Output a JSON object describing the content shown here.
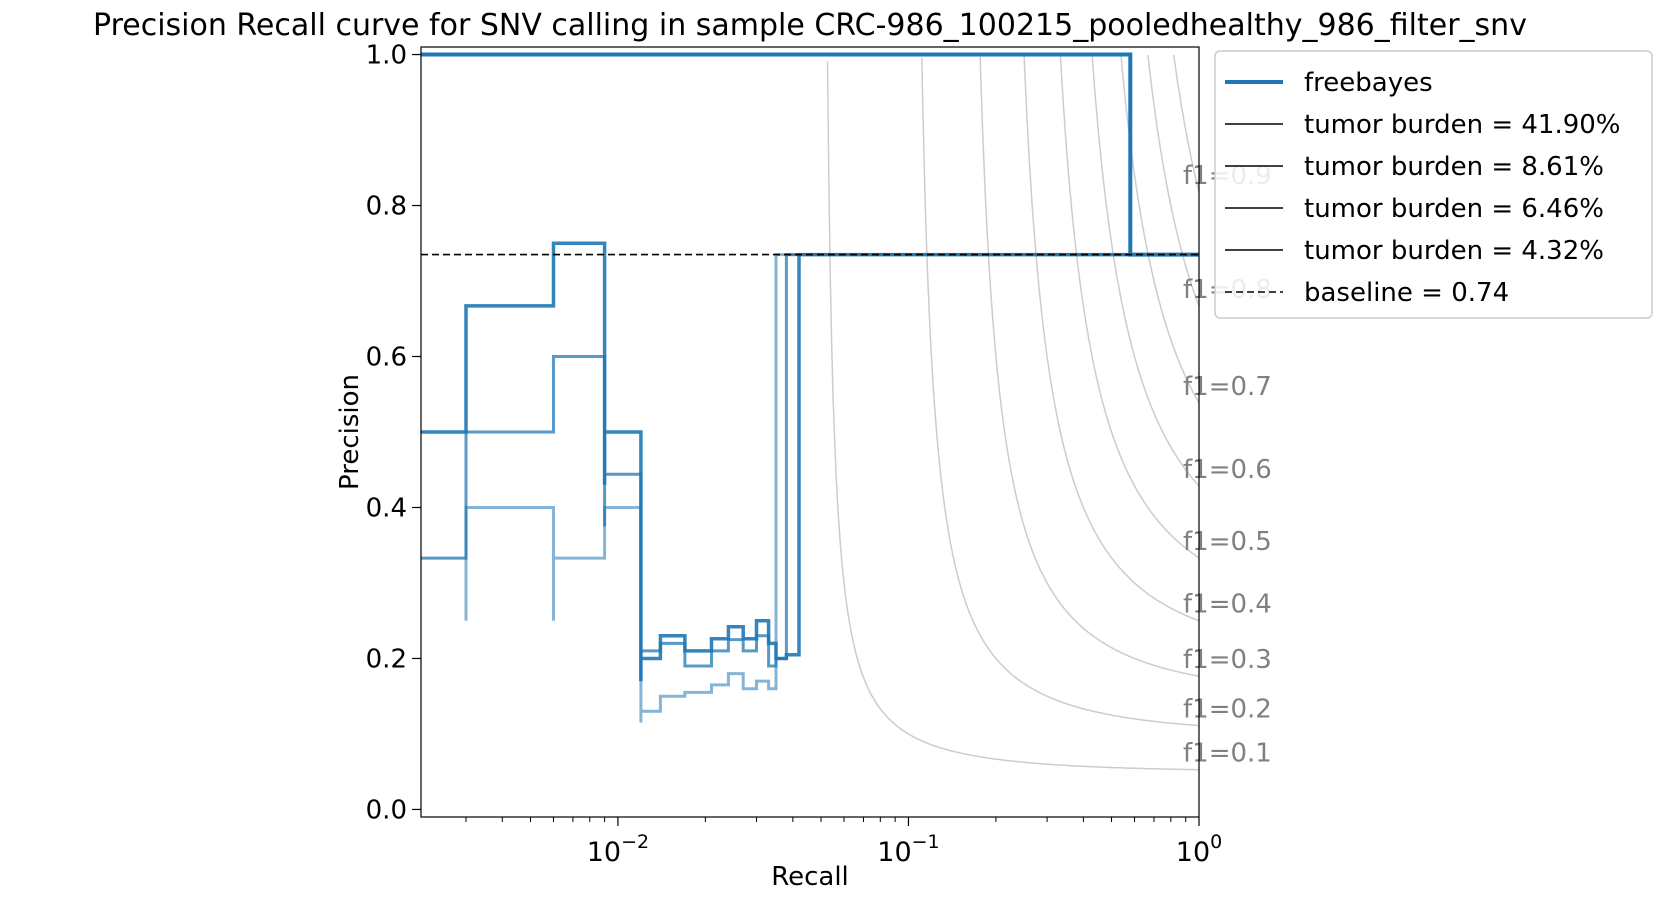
{
  "chart_data": {
    "type": "line",
    "title": "Precision Recall curve for SNV calling in sample CRC-986_100215_pooledhealthy_986_filter_snv",
    "xlabel": "Recall",
    "ylabel": "Precision",
    "xscale": "log",
    "xlim": [
      0.0021,
      1.0
    ],
    "ylim": [
      -0.01,
      1.01
    ],
    "x_ticks": [
      {
        "value": 0.01,
        "base": "10",
        "exp": "−2"
      },
      {
        "value": 0.1,
        "base": "10",
        "exp": "−1"
      },
      {
        "value": 1.0,
        "base": "10",
        "exp": "0"
      }
    ],
    "y_ticks": [
      {
        "value": 0.0,
        "label": "0.0"
      },
      {
        "value": 0.2,
        "label": "0.2"
      },
      {
        "value": 0.4,
        "label": "0.4"
      },
      {
        "value": 0.6,
        "label": "0.6"
      },
      {
        "value": 0.8,
        "label": "0.8"
      },
      {
        "value": 1.0,
        "label": "1.0"
      }
    ],
    "grid": false,
    "legend_position": "outside-top-right",
    "legend": [
      {
        "label": "freebayes",
        "style": "thick",
        "color": "#1f77b4"
      },
      {
        "label": "tumor burden = 41.90%",
        "style": "solid",
        "color": "#000000"
      },
      {
        "label": "tumor burden = 8.61%",
        "style": "solid",
        "color": "#000000"
      },
      {
        "label": "tumor burden = 6.46%",
        "style": "solid",
        "color": "#000000"
      },
      {
        "label": "tumor burden = 4.32%",
        "style": "solid",
        "color": "#000000"
      },
      {
        "label": "baseline = 0.74",
        "style": "dashed",
        "color": "#000000"
      }
    ],
    "baseline": 0.735,
    "f1_scores": [
      0.1,
      0.2,
      0.3,
      0.4,
      0.5,
      0.6,
      0.7,
      0.8,
      0.9
    ],
    "f1_labels": [
      "f1=0.1",
      "f1=0.2",
      "f1=0.3",
      "f1=0.4",
      "f1=0.5",
      "f1=0.6",
      "f1=0.7",
      "f1=0.8",
      "f1=0.9"
    ],
    "series": [
      {
        "name": "tumor burden = 41.90%",
        "color": "#1f77b4",
        "opacity": 1.0,
        "width": 4,
        "x": [
          0.0021,
          0.58,
          0.58,
          1.0
        ],
        "y": [
          1.0,
          1.0,
          0.735,
          0.735
        ]
      },
      {
        "name": "tumor burden = 8.61%",
        "color": "#1f77b4",
        "opacity": 0.9,
        "width": 3.5,
        "x": [
          0.0021,
          0.003,
          0.003,
          0.006,
          0.006,
          0.009,
          0.009,
          0.009,
          0.012,
          0.012,
          0.012,
          0.012,
          0.014,
          0.014,
          0.017,
          0.017,
          0.021,
          0.021,
          0.024,
          0.024,
          0.027,
          0.027,
          0.03,
          0.03,
          0.033,
          0.033,
          0.035,
          0.035,
          0.038,
          0.038,
          0.042,
          0.042,
          1.0
        ],
        "y": [
          0.5,
          0.5,
          0.667,
          0.667,
          0.75,
          0.75,
          0.43,
          0.5,
          0.5,
          0.17,
          0.2,
          0.2,
          0.2,
          0.23,
          0.23,
          0.21,
          0.21,
          0.226,
          0.226,
          0.242,
          0.242,
          0.226,
          0.226,
          0.25,
          0.25,
          0.22,
          0.22,
          0.2,
          0.2,
          0.205,
          0.205,
          0.735,
          0.735
        ]
      },
      {
        "name": "tumor burden = 6.46%",
        "color": "#1f77b4",
        "opacity": 0.75,
        "width": 3,
        "x": [
          0.0021,
          0.003,
          0.003,
          0.006,
          0.006,
          0.009,
          0.009,
          0.009,
          0.012,
          0.012,
          0.012,
          0.012,
          0.014,
          0.014,
          0.017,
          0.017,
          0.021,
          0.021,
          0.024,
          0.024,
          0.027,
          0.027,
          0.03,
          0.03,
          0.033,
          0.033,
          0.035,
          0.035,
          0.038,
          0.038,
          1.0
        ],
        "y": [
          0.333,
          0.333,
          0.5,
          0.5,
          0.6,
          0.6,
          0.375,
          0.444,
          0.444,
          0.17,
          0.21,
          0.21,
          0.21,
          0.22,
          0.22,
          0.19,
          0.19,
          0.21,
          0.21,
          0.225,
          0.225,
          0.21,
          0.21,
          0.23,
          0.23,
          0.19,
          0.19,
          0.2,
          0.2,
          0.735,
          0.735
        ]
      },
      {
        "name": "tumor burden = 4.32%",
        "color": "#1f77b4",
        "opacity": 0.55,
        "width": 3,
        "x": [
          0.003,
          0.003,
          0.003,
          0.006,
          0.006,
          0.006,
          0.009,
          0.009,
          0.009,
          0.012,
          0.012,
          0.012,
          0.014,
          0.014,
          0.017,
          0.017,
          0.021,
          0.021,
          0.024,
          0.024,
          0.027,
          0.027,
          0.03,
          0.03,
          0.033,
          0.033,
          0.035,
          0.035,
          1.0
        ],
        "y": [
          0.25,
          0.4,
          0.4,
          0.4,
          0.25,
          0.333,
          0.333,
          0.4,
          0.4,
          0.4,
          0.115,
          0.13,
          0.13,
          0.15,
          0.15,
          0.155,
          0.155,
          0.165,
          0.165,
          0.18,
          0.18,
          0.16,
          0.16,
          0.17,
          0.17,
          0.16,
          0.16,
          0.735,
          0.735
        ]
      }
    ]
  }
}
